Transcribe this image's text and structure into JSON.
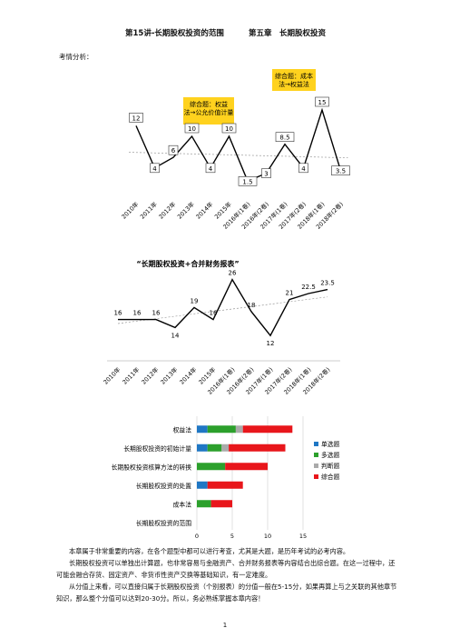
{
  "header": {
    "title_left": "第15讲-长期股权投资的范围",
    "title_right": "第五章　长期股权投资"
  },
  "section_label": "考情分析：",
  "chart_data": [
    {
      "type": "line",
      "title": "",
      "categories": [
        "2010年",
        "2011年",
        "2012年",
        "2013年",
        "2014年",
        "2015年",
        "2016年(1卷)",
        "2016年(2卷)",
        "2017年(1卷)",
        "2017年(2卷)",
        "2018年(1卷)",
        "2018年(2卷)"
      ],
      "series": [
        {
          "values": [
            12,
            4,
            6,
            10,
            4,
            10,
            1.5,
            3,
            8.5,
            4,
            15,
            3.5
          ]
        }
      ],
      "data_labels": [
        "12",
        "4",
        "6",
        "10",
        "4",
        "10",
        "1.5",
        "3",
        "8.5",
        "4",
        "15",
        "3.5"
      ],
      "trendline": true,
      "callouts": [
        {
          "text": "综合题：权益法→公允价值计量",
          "points_to": "2013年"
        },
        {
          "text": "综合题：成本法→权益法",
          "points_to": "2018年(1卷)"
        }
      ]
    },
    {
      "type": "line",
      "title": "“长期股权投资+合并财务报表”",
      "categories": [
        "2010年",
        "2011年",
        "2012年",
        "2013年",
        "2014年",
        "2015年",
        "2016年(1卷)",
        "2016年(2卷)",
        "2017年(1卷)",
        "2017年(2卷)",
        "2018年(1卷)",
        "2018年(2卷)"
      ],
      "series": [
        {
          "values": [
            16,
            16,
            16,
            14,
            19,
            16,
            26,
            18,
            12,
            21,
            22.5,
            23.5
          ]
        }
      ],
      "data_labels": [
        "16",
        "16",
        "16",
        "14",
        "19",
        "16",
        "26",
        "18",
        "12",
        "21",
        "22.5",
        "23.5"
      ],
      "trendline": true
    },
    {
      "type": "bar",
      "orientation": "horizontal",
      "stacked": true,
      "categories": [
        "权益法",
        "长期股权投资的初始计量",
        "长期股权投资核算方法的转换",
        "长期股权投资的处置",
        "成本法",
        "长期股权投资的范围"
      ],
      "series": [
        {
          "name": "单选题",
          "color": "#1f77c4",
          "values": [
            1.5,
            1.5,
            0,
            1.5,
            0,
            0
          ]
        },
        {
          "name": "多选题",
          "color": "#2ca02c",
          "values": [
            4,
            2,
            4,
            0,
            2,
            0
          ]
        },
        {
          "name": "判断题",
          "color": "#aaaaaa",
          "values": [
            1,
            1,
            0,
            0,
            0,
            0
          ]
        },
        {
          "name": "综合题",
          "color": "#e8161b",
          "values": [
            7,
            8,
            6,
            5,
            3,
            0
          ]
        }
      ],
      "xticks": [
        "0",
        "5",
        "10",
        "15"
      ],
      "xlim": [
        0,
        15
      ],
      "legend_position": "right"
    }
  ],
  "paragraphs": [
    "本章属于非常重要的内容，在各个题型中都可以进行考查，尤其是大题，是历年考试的必考内容。",
    "长期股权投资可以单独出计算题，也非常容易与金融资产、合并财务报表等内容结合出综合题。在这一过程中，还可能会融合存货、固定资产、非货币性资产交换等基础知识，有一定难度。",
    "从分值上来看，可以直接归属于长期股权投资（个别报表）的分值一般在5-15分，如果再算上与之关联的其他章节知识，那么整个分值可以达到20-30分。所以，务必熟练掌握本章内容！"
  ],
  "page_number": "1"
}
